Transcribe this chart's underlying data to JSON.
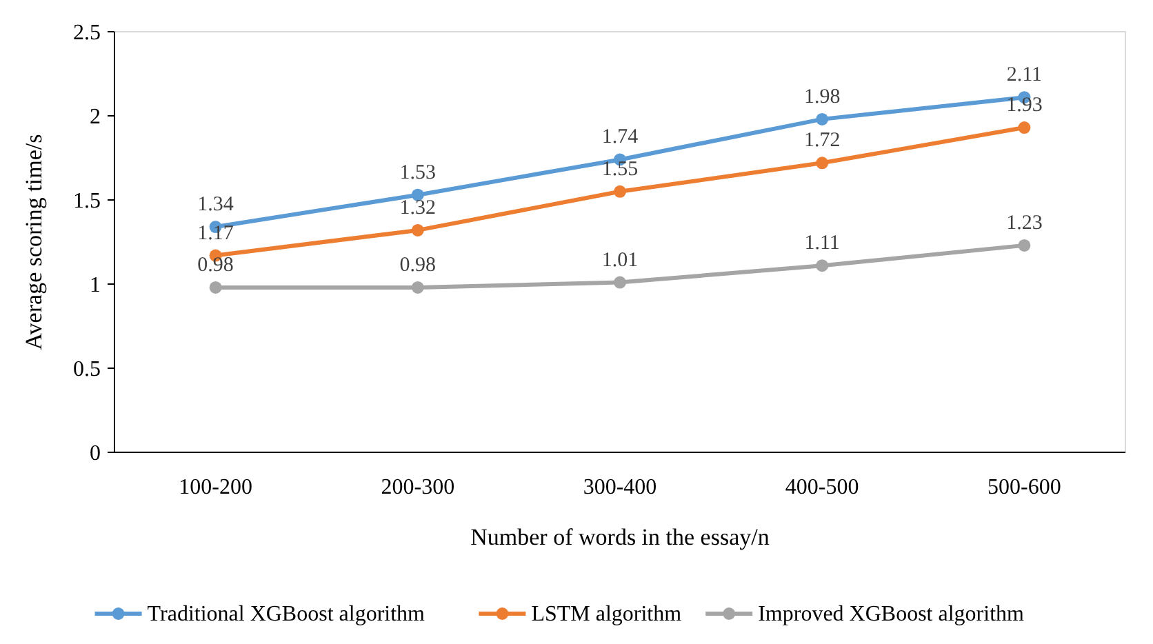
{
  "chart_data": {
    "type": "line",
    "xlabel": "Number of words in the essay/n",
    "ylabel": "Average scoring time/s",
    "categories": [
      "100-200",
      "200-300",
      "300-400",
      "400-500",
      "500-600"
    ],
    "series": [
      {
        "name": "Traditional XGBoost algorithm",
        "color": "#5b9bd5",
        "values": [
          1.34,
          1.53,
          1.74,
          1.98,
          2.11
        ]
      },
      {
        "name": "LSTM algorithm",
        "color": "#ed7d31",
        "values": [
          1.17,
          1.32,
          1.55,
          1.72,
          1.93
        ]
      },
      {
        "name": "Improved XGBoost algorithm",
        "color": "#a5a5a5",
        "values": [
          0.98,
          0.98,
          1.01,
          1.11,
          1.23
        ]
      }
    ],
    "ylim": [
      0,
      2.5
    ],
    "yticks": [
      0,
      0.5,
      1,
      1.5,
      2,
      2.5
    ],
    "grid": false,
    "legend": "bottom",
    "marker": "circle",
    "line_style": "solid",
    "data_labels": true
  }
}
